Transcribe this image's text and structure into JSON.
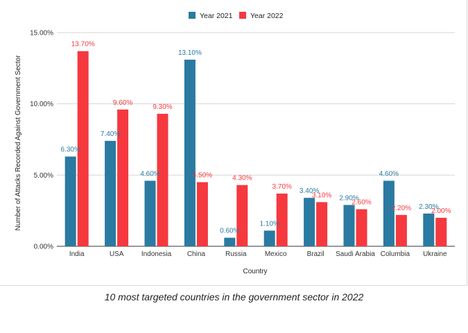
{
  "chart_data": {
    "type": "bar",
    "categories": [
      "India",
      "USA",
      "Indonesia",
      "China",
      "Russia",
      "Mexico",
      "Brazil",
      "Saudi Arabia",
      "Columbia",
      "Ukraine"
    ],
    "series": [
      {
        "name": "Year 2021",
        "color": "#2a7aa1",
        "values": [
          6.3,
          7.4,
          4.6,
          13.1,
          0.6,
          1.1,
          3.4,
          2.9,
          4.6,
          2.3
        ],
        "labels": [
          "6.30%",
          "7.40%",
          "4.60%",
          "13.10%",
          "0.60%",
          "1.10%",
          "3.40%",
          "2.90%",
          "4.60%",
          "2.30%"
        ]
      },
      {
        "name": "Year 2022",
        "color": "#f5393f",
        "values": [
          13.7,
          9.6,
          9.3,
          4.5,
          4.3,
          3.7,
          3.1,
          2.6,
          2.2,
          2.0
        ],
        "labels": [
          "13.70%",
          "9.60%",
          "9.30%",
          "4.50%",
          "4.30%",
          "3.70%",
          "3.10%",
          "2.60%",
          "2.20%",
          "2.00%"
        ]
      }
    ],
    "xlabel": "Country",
    "ylabel": "Number of Attacks Recorded Against Government Sector",
    "ylim": [
      0,
      15
    ],
    "yticks": [
      0,
      5,
      10,
      15
    ],
    "ytick_labels": [
      "0.00%",
      "5.00%",
      "10.00%",
      "15.00%"
    ],
    "grid": true,
    "legend_position": "top-center"
  },
  "caption": "10 most targeted countries in the government sector in 2022"
}
